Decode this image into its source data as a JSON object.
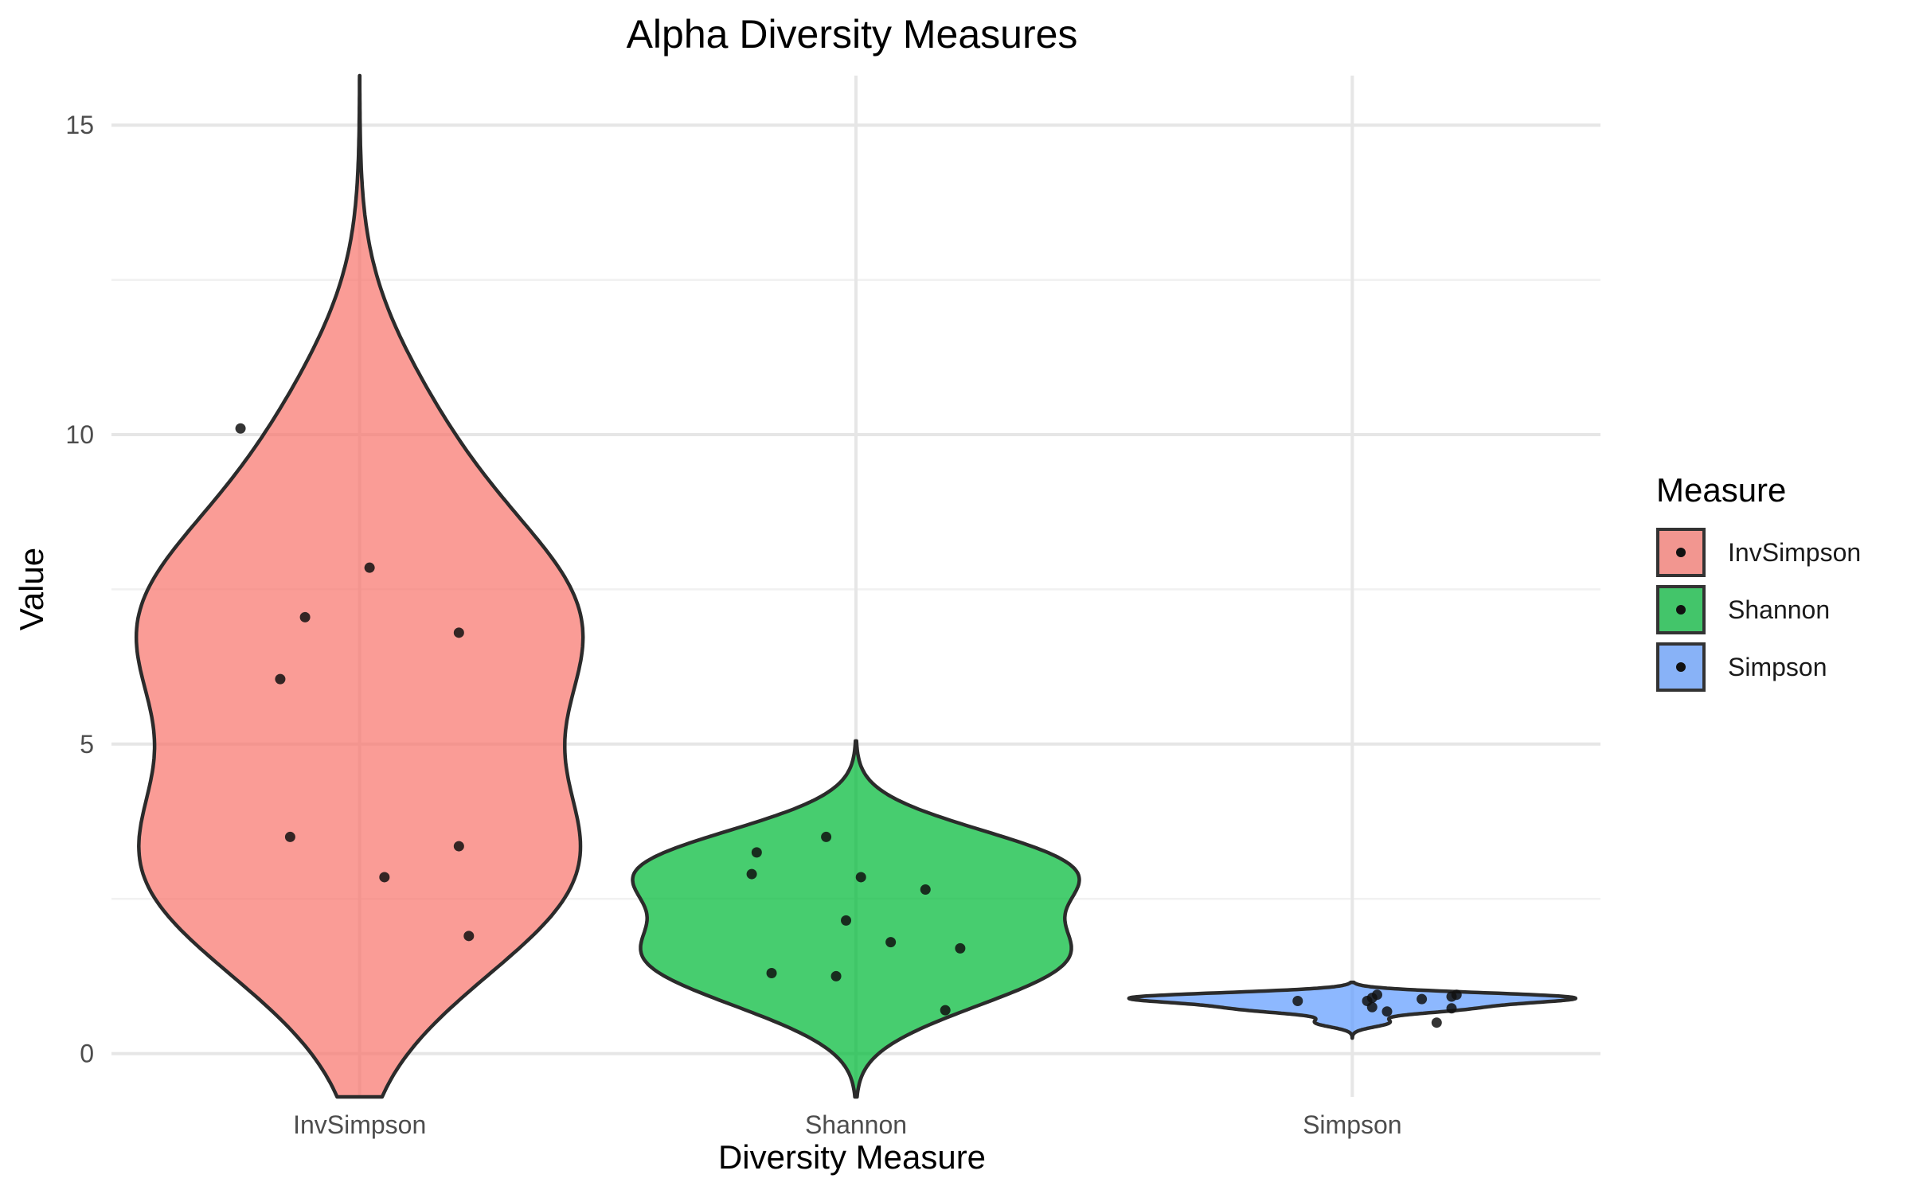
{
  "chart_data": {
    "type": "violin",
    "title": "Alpha Diversity Measures",
    "xlabel": "Diversity Measure",
    "ylabel": "Value",
    "categories": [
      "InvSimpson",
      "Shannon",
      "Simpson"
    ],
    "ylim": [
      -0.7,
      15.8
    ],
    "yticks": [
      0,
      5,
      10,
      15
    ],
    "grid": true,
    "legend": {
      "title": "Measure",
      "position": "right",
      "entries": [
        "InvSimpson",
        "Shannon",
        "Simpson"
      ]
    },
    "colors": {
      "InvSimpson": "#F8766D",
      "Shannon": "#00BA38",
      "Simpson": "#619CFF"
    },
    "series": [
      {
        "name": "InvSimpson",
        "range": [
          -0.7,
          15.8
        ],
        "points": [
          {
            "jitter": -0.24,
            "y": 10.1
          },
          {
            "jitter": 0.02,
            "y": 7.85
          },
          {
            "jitter": -0.11,
            "y": 7.05
          },
          {
            "jitter": 0.2,
            "y": 6.8
          },
          {
            "jitter": -0.16,
            "y": 6.05
          },
          {
            "jitter": -0.14,
            "y": 3.5
          },
          {
            "jitter": 0.2,
            "y": 3.35
          },
          {
            "jitter": 0.05,
            "y": 2.85
          },
          {
            "jitter": 0.22,
            "y": 1.9
          }
        ]
      },
      {
        "name": "Shannon",
        "range": [
          -0.7,
          5.05
        ],
        "points": [
          {
            "jitter": -0.06,
            "y": 3.5
          },
          {
            "jitter": -0.2,
            "y": 3.25
          },
          {
            "jitter": -0.21,
            "y": 2.9
          },
          {
            "jitter": 0.01,
            "y": 2.85
          },
          {
            "jitter": 0.14,
            "y": 2.65
          },
          {
            "jitter": -0.02,
            "y": 2.15
          },
          {
            "jitter": 0.07,
            "y": 1.8
          },
          {
            "jitter": 0.21,
            "y": 1.7
          },
          {
            "jitter": -0.17,
            "y": 1.3
          },
          {
            "jitter": -0.04,
            "y": 1.25
          },
          {
            "jitter": 0.18,
            "y": 0.7
          }
        ]
      },
      {
        "name": "Simpson",
        "range": [
          0.25,
          1.15
        ],
        "points": [
          {
            "jitter": 0.05,
            "y": 0.95
          },
          {
            "jitter": 0.21,
            "y": 0.95
          },
          {
            "jitter": 0.2,
            "y": 0.92
          },
          {
            "jitter": 0.04,
            "y": 0.9
          },
          {
            "jitter": 0.03,
            "y": 0.85
          },
          {
            "jitter": 0.14,
            "y": 0.88
          },
          {
            "jitter": -0.11,
            "y": 0.85
          },
          {
            "jitter": 0.04,
            "y": 0.75
          },
          {
            "jitter": 0.2,
            "y": 0.73
          },
          {
            "jitter": 0.07,
            "y": 0.68
          },
          {
            "jitter": 0.17,
            "y": 0.5
          }
        ]
      }
    ]
  }
}
